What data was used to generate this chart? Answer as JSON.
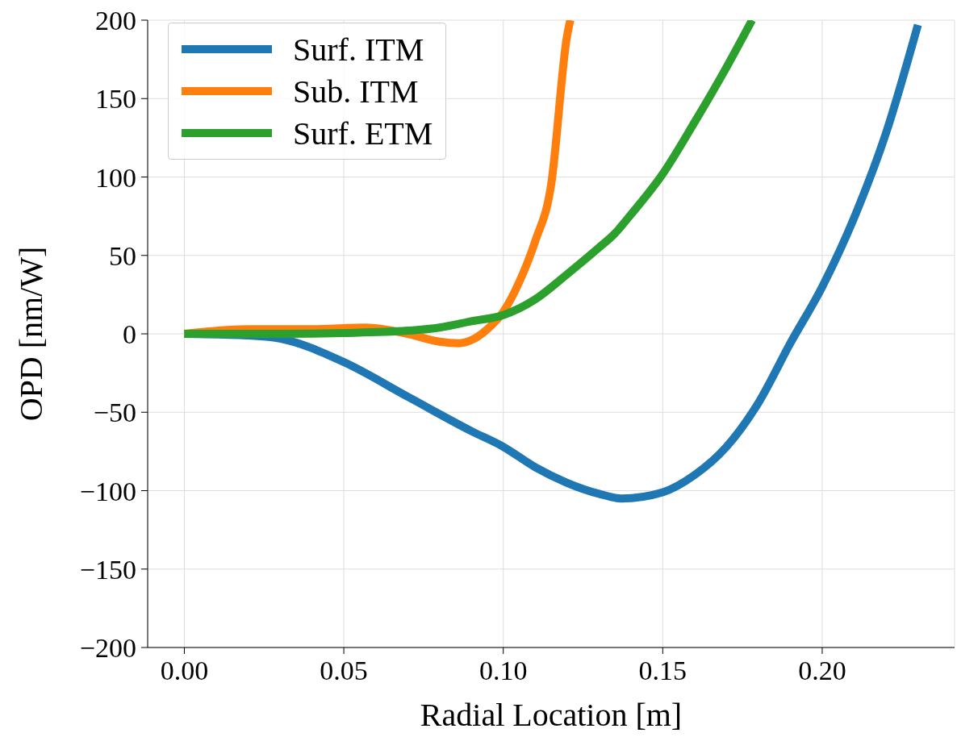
{
  "chart_data": {
    "type": "line",
    "xlabel": "Radial Location [m]",
    "ylabel": "OPD [nm/W]",
    "xlim": [
      -0.0115,
      0.2415
    ],
    "xticks": [
      {
        "value": 0,
        "label": "0.00"
      },
      {
        "value": 0.05,
        "label": "0.05"
      },
      {
        "value": 0.1,
        "label": "0.10"
      },
      {
        "value": 0.15,
        "label": "0.15"
      },
      {
        "value": 0.2,
        "label": "0.20"
      }
    ],
    "ylim": [
      -200,
      200
    ],
    "yticks": [
      -200,
      -150,
      -100,
      -50,
      0,
      50,
      100,
      150,
      200
    ],
    "grid": true,
    "legend": "top left",
    "line_style": "solid",
    "marker": "none",
    "series": [
      {
        "name": "Surf. ITM",
        "color": "#1f77b4",
        "x": [
          0,
          0.02,
          0.03,
          0.05,
          0.07,
          0.09,
          0.1,
          0.11,
          0.12,
          0.13,
          0.137,
          0.15,
          0.16,
          0.17,
          0.18,
          0.19,
          0.2,
          0.21,
          0.22,
          0.23
        ],
        "values": [
          0,
          -1,
          -3,
          -18,
          -40,
          -62,
          -72,
          -85,
          -95,
          -102,
          -105,
          -101,
          -90,
          -72,
          -44,
          -6,
          30,
          74,
          128,
          197
        ]
      },
      {
        "name": "Sub. ITM",
        "color": "#ff7f0e",
        "x": [
          0,
          0.02,
          0.04,
          0.057,
          0.07,
          0.08,
          0.086,
          0.09,
          0.095,
          0.1,
          0.105,
          0.11,
          0.115,
          0.12,
          0.121
        ],
        "values": [
          0,
          3,
          3,
          4,
          0,
          -5,
          -6,
          -4,
          3,
          14,
          33,
          59,
          95,
          190,
          200
        ]
      },
      {
        "name": "Surf. ETM",
        "color": "#2ca02c",
        "x": [
          0,
          0.03,
          0.05,
          0.07,
          0.08,
          0.09,
          0.1,
          0.11,
          0.12,
          0.13,
          0.135,
          0.14,
          0.15,
          0.16,
          0.17,
          0.178
        ],
        "values": [
          0,
          0,
          0.5,
          2,
          4,
          8,
          12,
          22,
          38,
          55,
          64,
          76,
          102,
          135,
          170,
          200
        ]
      }
    ]
  }
}
